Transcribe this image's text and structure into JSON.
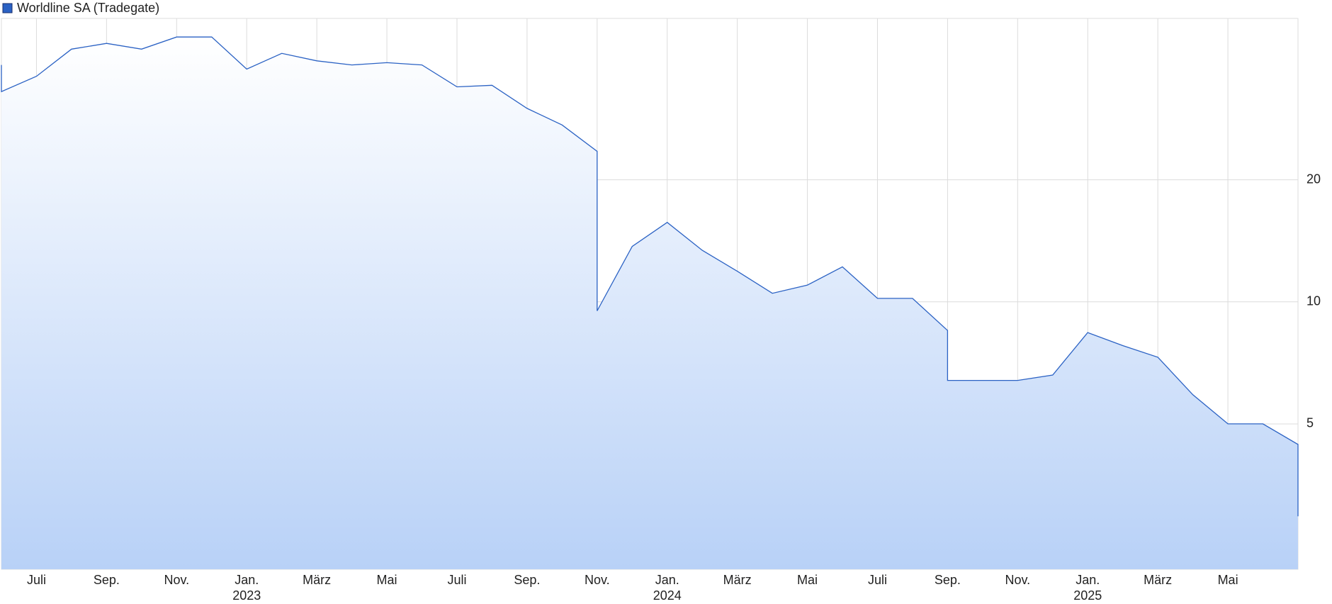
{
  "chart_data": {
    "type": "line",
    "title": "Worldline SA (Tradegate)",
    "log_scale": true,
    "grid": true,
    "color": "#2b62c4",
    "fill_top": "#ffffff",
    "fill_bottom": "#b8d1f7",
    "x": [
      "2022-06",
      "2022-06",
      "2022-07",
      "2022-08",
      "2022-09",
      "2022-10",
      "2022-11",
      "2022-12",
      "2023-01",
      "2023-02",
      "2023-03",
      "2023-04",
      "2023-05",
      "2023-06",
      "2023-07",
      "2023-08",
      "2023-09",
      "2023-10",
      "2023-11",
      "2023-11",
      "2023-12",
      "2024-01",
      "2024-02",
      "2024-03",
      "2024-04",
      "2024-05",
      "2024-06",
      "2024-07",
      "2024-08",
      "2024-09",
      "2024-09",
      "2024-10",
      "2024-11",
      "2024-12",
      "2025-01",
      "2025-02",
      "2025-03",
      "2025-04",
      "2025-05",
      "2025-06",
      "2025-07",
      "2025-07"
    ],
    "series": [
      {
        "name": "Worldline SA (Tradegate)",
        "values": [
          38.4,
          33,
          36,
          42,
          43.4,
          42,
          45,
          45,
          37.5,
          41,
          39.3,
          38.4,
          38.9,
          38.4,
          33.9,
          34.2,
          30,
          27.3,
          23.5,
          9.5,
          13.7,
          15.7,
          13.4,
          11.9,
          10.5,
          11,
          12.2,
          10.2,
          10.2,
          8.5,
          6.4,
          6.4,
          6.4,
          6.6,
          8.4,
          7.8,
          7.3,
          5.9,
          5,
          5,
          4.45,
          2.96
        ]
      }
    ],
    "xlim": [
      "2022-06",
      "2025-07"
    ],
    "xticks": [
      {
        "value": "2022-07",
        "label": "Juli"
      },
      {
        "value": "2022-09",
        "label": "Sep."
      },
      {
        "value": "2022-11",
        "label": "Nov."
      },
      {
        "value": "2023-01",
        "label": "Jan.",
        "year": "2023"
      },
      {
        "value": "2023-03",
        "label": "März"
      },
      {
        "value": "2023-05",
        "label": "Mai"
      },
      {
        "value": "2023-07",
        "label": "Juli"
      },
      {
        "value": "2023-09",
        "label": "Sep."
      },
      {
        "value": "2023-11",
        "label": "Nov."
      },
      {
        "value": "2024-01",
        "label": "Jan.",
        "year": "2024"
      },
      {
        "value": "2024-03",
        "label": "März"
      },
      {
        "value": "2024-05",
        "label": "Mai"
      },
      {
        "value": "2024-07",
        "label": "Juli"
      },
      {
        "value": "2024-09",
        "label": "Sep."
      },
      {
        "value": "2024-11",
        "label": "Nov."
      },
      {
        "value": "2025-01",
        "label": "Jan.",
        "year": "2025"
      },
      {
        "value": "2025-03",
        "label": "März"
      },
      {
        "value": "2025-05",
        "label": "Mai"
      }
    ],
    "ylim": [
      2.19,
      50
    ],
    "yticks": [
      5,
      10,
      20
    ]
  }
}
